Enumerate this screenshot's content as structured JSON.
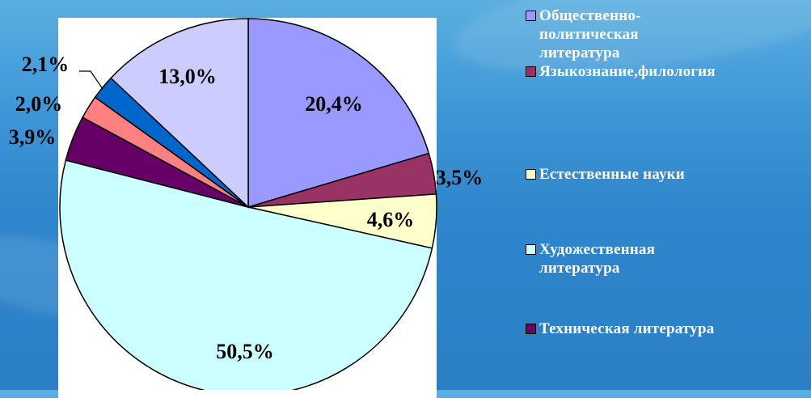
{
  "chart_data": {
    "type": "pie",
    "slices": [
      {
        "label": "Общественно-политическая литература",
        "value": 20.4,
        "text": "20,4%",
        "color": "#9999ff"
      },
      {
        "label": "Языкознание,филология",
        "value": 3.5,
        "text": "3,5%",
        "color": "#993366"
      },
      {
        "label": "Естественные науки",
        "value": 4.6,
        "text": "4,6%",
        "color": "#ffffcc"
      },
      {
        "label": "Художественная литература",
        "value": 50.5,
        "text": "50,5%",
        "color": "#ccffff"
      },
      {
        "label": "Техническая литература",
        "value": 3.9,
        "text": "3,9%",
        "color": "#660066"
      },
      {
        "label": "",
        "value": 2.0,
        "text": "2,0%",
        "color": "#ff8080"
      },
      {
        "label": "",
        "value": 2.1,
        "text": "2,1%",
        "color": "#0066cc"
      },
      {
        "label": "",
        "value": 13.0,
        "text": "13,0%",
        "color": "#ccccff"
      }
    ],
    "legend_position": "right"
  },
  "legend": {
    "items": [
      {
        "lines": [
          "Общественно-",
          "политическая",
          "литература"
        ],
        "color": "#9999ff"
      },
      {
        "lines": [
          "Языкознание,филология"
        ],
        "color": "#993366"
      },
      {
        "lines": [
          "Естественные науки"
        ],
        "color": "#ffffcc"
      },
      {
        "lines": [
          "Художественная",
          "литература"
        ],
        "color": "#ccffff"
      },
      {
        "lines": [
          "Техническая литература"
        ],
        "color": "#660066"
      }
    ]
  }
}
